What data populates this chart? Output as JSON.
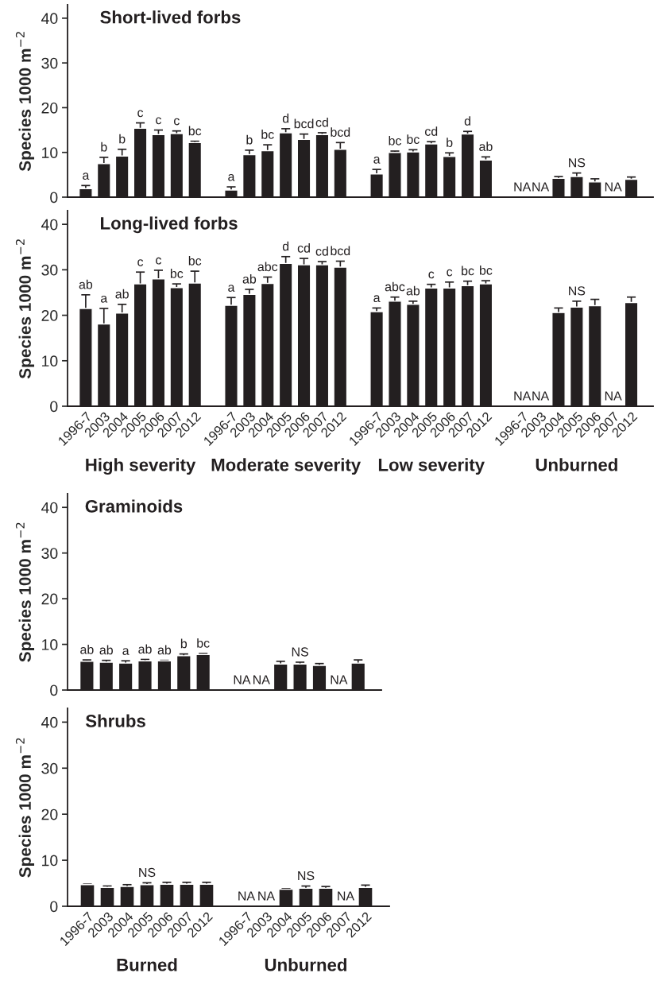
{
  "chart_data": [
    {
      "type": "bar",
      "title": "Short-lived forbs",
      "ylabel": "Species 1000 m$^{−2}$",
      "color": "#231f20",
      "ylim": [
        0,
        43
      ],
      "yticks": [
        0,
        10,
        20,
        30,
        40
      ],
      "tick_labels": "y",
      "categories": [
        "1996-7",
        "2003",
        "2004",
        "2005",
        "2006",
        "2007",
        "2012",
        null,
        "1996-7",
        "2003",
        "2004",
        "2005",
        "2006",
        "2007",
        "2012",
        null,
        "1996-7",
        "2003",
        "2004",
        "2005",
        "2006",
        "2007",
        "2012",
        null,
        "1996-7",
        "2003",
        "2004",
        "2005",
        "2006",
        "2007",
        "2012"
      ],
      "values": [
        1.9,
        7.5,
        9.2,
        15.4,
        14.0,
        14.2,
        12.2,
        null,
        1.6,
        9.5,
        10.4,
        14.4,
        12.9,
        14.0,
        10.7,
        null,
        5.2,
        10.0,
        10.1,
        11.9,
        9.1,
        14.1,
        8.3,
        null,
        null,
        null,
        4.2,
        4.6,
        3.4,
        null,
        4.0
      ],
      "errors": [
        0.7,
        1.4,
        1.5,
        1.2,
        1.0,
        0.6,
        0.3,
        null,
        0.7,
        1.0,
        1.3,
        0.9,
        1.2,
        0.4,
        1.5,
        null,
        1.0,
        0.3,
        0.5,
        0.5,
        0.8,
        0.6,
        0.7,
        null,
        null,
        null,
        0.4,
        0.8,
        0.7,
        null,
        0.5
      ],
      "value_labels": [
        "a",
        "b",
        "b",
        "c",
        "c",
        "c",
        "bc",
        null,
        "a",
        "b",
        "bc",
        "d",
        "bcd",
        "cd",
        "bcd",
        null,
        "a",
        "bc",
        "bc",
        "cd",
        "b",
        "d",
        "ab",
        null,
        "NA",
        "NA",
        null,
        "NS",
        null,
        "NA",
        null
      ]
    },
    {
      "type": "bar",
      "title": "Long-lived forbs",
      "ylabel": "Species 1000 m$^{−2}$",
      "color": "#231f20",
      "ylim": [
        0,
        43
      ],
      "yticks": [
        0,
        10,
        20,
        30,
        40
      ],
      "categories": [
        "1996-7",
        "2003",
        "2004",
        "2005",
        "2006",
        "2007",
        "2012",
        null,
        "1996-7",
        "2003",
        "2004",
        "2005",
        "2006",
        "2007",
        "2012",
        null,
        "1996-7",
        "2003",
        "2004",
        "2005",
        "2006",
        "2007",
        "2012",
        null,
        "1996-7",
        "2003",
        "2004",
        "2005",
        "2006",
        "2007",
        "2012"
      ],
      "values": [
        21.5,
        18.1,
        20.5,
        26.9,
        28.0,
        26.1,
        27.1,
        null,
        22.2,
        24.6,
        27.0,
        31.4,
        31.1,
        31.1,
        30.6,
        null,
        20.8,
        23.1,
        22.4,
        26.0,
        26.0,
        26.5,
        26.9,
        null,
        null,
        null,
        20.6,
        21.8,
        22.1,
        null,
        22.8
      ],
      "errors": [
        3.0,
        3.4,
        1.9,
        2.6,
        1.9,
        0.8,
        2.6,
        null,
        1.7,
        1.1,
        1.4,
        1.5,
        1.4,
        0.7,
        1.3,
        null,
        0.8,
        0.9,
        0.7,
        0.8,
        1.3,
        1.0,
        0.7,
        null,
        null,
        null,
        1.0,
        1.3,
        1.4,
        null,
        1.2
      ],
      "value_labels": [
        "ab",
        "a",
        "ab",
        "c",
        "c",
        "bc",
        "bc",
        null,
        "a",
        "ab",
        "abc",
        "d",
        "cd",
        "cd",
        "bcd",
        null,
        "a",
        "abc",
        "ab",
        "c",
        "c",
        "bc",
        "bc",
        null,
        "NA",
        "NA",
        null,
        "NS",
        null,
        "NA",
        null
      ],
      "annotations": [
        "High severity",
        "Moderate severity",
        "Low severity",
        "Unburned"
      ]
    },
    {
      "type": "bar",
      "title": "Graminoids",
      "ylabel": "Species 1000 m$^{−2}$",
      "color": "#231f20",
      "ylim": [
        0,
        43
      ],
      "yticks": [
        0,
        10,
        20,
        30,
        40
      ],
      "tick_labels": "y",
      "categories": [
        "1996-7",
        "2003",
        "2004",
        "2005",
        "2006",
        "2007",
        "2012",
        null,
        "1996-7",
        "2003",
        "2004",
        "2005",
        "2006",
        "2007",
        "2012"
      ],
      "values": [
        6.3,
        6.1,
        5.9,
        6.4,
        6.4,
        7.5,
        7.8,
        null,
        null,
        null,
        5.7,
        5.7,
        5.4,
        null,
        5.9
      ],
      "errors": [
        0.3,
        0.4,
        0.5,
        0.3,
        0.1,
        0.4,
        0.2,
        null,
        null,
        null,
        0.6,
        0.4,
        0.4,
        null,
        0.7
      ],
      "value_labels": [
        "ab",
        "ab",
        "a",
        "ab",
        "ab",
        "b",
        "bc",
        null,
        "NA",
        "NA",
        null,
        "NS",
        null,
        "NA",
        null
      ]
    },
    {
      "type": "bar",
      "title": "Shrubs",
      "ylabel": "Species 1000 m$^{−2}$",
      "color": "#231f20",
      "ylim": [
        0,
        43
      ],
      "yticks": [
        0,
        10,
        20,
        30,
        40
      ],
      "categories": [
        "1996-7",
        "2003",
        "2004",
        "2005",
        "2006",
        "2007",
        "2012",
        null,
        "1996-7",
        "2003",
        "2004",
        "2005",
        "2006",
        "2007",
        "2012"
      ],
      "values": [
        4.7,
        4.1,
        4.3,
        4.7,
        4.8,
        4.8,
        4.8,
        null,
        null,
        null,
        3.7,
        3.9,
        3.9,
        null,
        4.1
      ],
      "errors": [
        0.1,
        0.3,
        0.4,
        0.4,
        0.4,
        0.4,
        0.4,
        null,
        null,
        null,
        0.1,
        0.5,
        0.4,
        null,
        0.5
      ],
      "value_labels": [
        null,
        null,
        null,
        "NS",
        null,
        null,
        null,
        null,
        "NA",
        "NA",
        null,
        "NS",
        null,
        "NA",
        null
      ],
      "annotations": [
        "Burned",
        "Unburned"
      ]
    }
  ]
}
